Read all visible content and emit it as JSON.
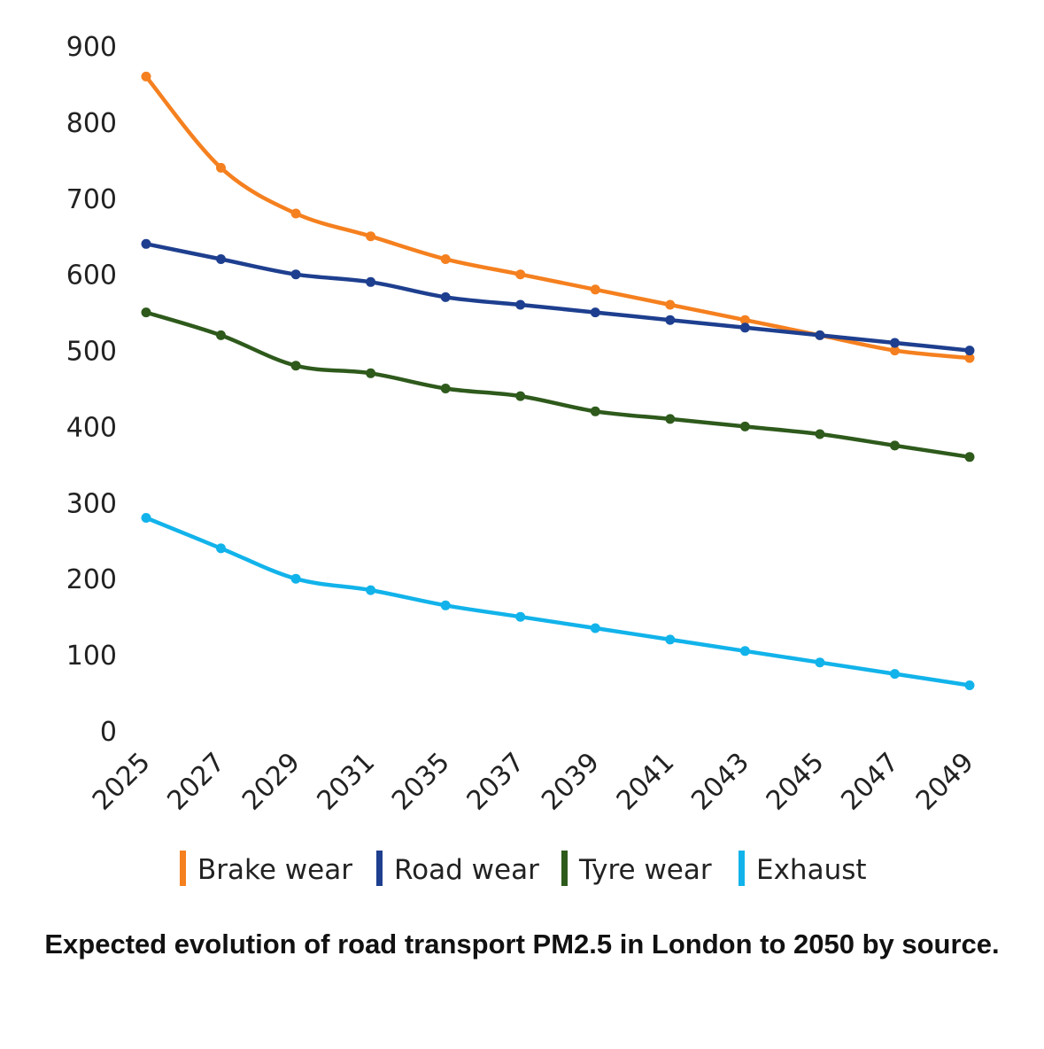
{
  "chart_data": {
    "type": "line",
    "categories": [
      "2025",
      "2027",
      "2029",
      "2031",
      "2035",
      "2037",
      "2039",
      "2041",
      "2043",
      "2045",
      "2047",
      "2049"
    ],
    "series": [
      {
        "name": "Brake wear",
        "color": "#F5801F",
        "values": [
          860,
          740,
          680,
          650,
          620,
          600,
          580,
          560,
          540,
          520,
          500,
          490
        ]
      },
      {
        "name": "Road wear",
        "color": "#1E3F8F",
        "values": [
          640,
          620,
          600,
          590,
          570,
          560,
          550,
          540,
          530,
          520,
          510,
          500
        ]
      },
      {
        "name": "Tyre wear",
        "color": "#2E5A1C",
        "values": [
          550,
          520,
          480,
          470,
          450,
          440,
          420,
          410,
          400,
          390,
          375,
          360
        ]
      },
      {
        "name": "Exhaust",
        "color": "#12B3EA",
        "values": [
          280,
          240,
          200,
          185,
          165,
          150,
          135,
          120,
          105,
          90,
          75,
          60
        ]
      }
    ],
    "ylim": [
      0,
      900
    ],
    "yticks": [
      0,
      100,
      200,
      300,
      400,
      500,
      600,
      700,
      800,
      900
    ],
    "xlabel": "",
    "ylabel": "",
    "grid": false,
    "legend": "bottom",
    "title": "Expected evolution of road transport PM2.5 in London to 2050 by source."
  }
}
